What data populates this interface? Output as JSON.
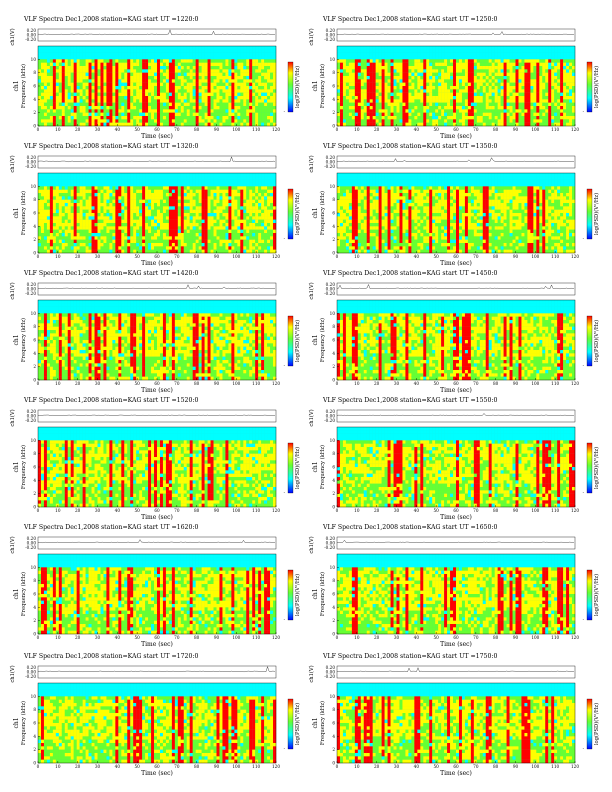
{
  "figure": {
    "title_prefix": "VLF Spectra",
    "date": "Dec1,2008",
    "station": "station=KAG",
    "start_prefix": "start UT =",
    "xlabel": "Time (sec)",
    "ylabel_freq": "Frequency (kHz)",
    "ylabel_channel": "ch1",
    "ylabel_top": "ch1(V)",
    "colorbar_label": "log(PSD)(V²/Hz)",
    "colors": {
      "background": "#ffffff",
      "cmap_low": "#0000ff",
      "cmap_mid_low": "#00ffff",
      "cmap_mid": "#66ff33",
      "cmap_mid_high": "#ffff00",
      "cmap_high": "#ff0000",
      "band_top": "#1a6cff"
    }
  },
  "chart_data": [
    {
      "type": "heatmap",
      "id": "p1",
      "title": "VLF Spectra Dec1,2008 station=KAG start UT =1220:0",
      "start_ut": "1220:0",
      "x_ticks": [
        0,
        10,
        20,
        30,
        40,
        50,
        60,
        70,
        80,
        90,
        100,
        110,
        120
      ],
      "x_range": [
        0,
        120
      ],
      "y_ticks": [
        0,
        2,
        4,
        6,
        8,
        10
      ],
      "y_range": [
        0,
        12
      ],
      "top_ticks": [
        "0.20",
        "0.00",
        "-0.20"
      ],
      "xlabel": "Time (sec)",
      "ylabel": "Frequency (kHz)",
      "cbar_ticks": [
        "",
        "",
        "-"
      ]
    },
    {
      "type": "heatmap",
      "id": "p2",
      "title": "VLF Spectra Dec1,2008 station=KAG start UT =1250:0",
      "start_ut": "1250:0",
      "x_ticks": [
        0,
        10,
        20,
        30,
        40,
        50,
        60,
        70,
        80,
        90,
        100,
        110,
        120
      ],
      "x_range": [
        0,
        120
      ],
      "y_ticks": [
        0,
        2,
        4,
        6,
        8,
        10
      ],
      "y_range": [
        0,
        12
      ],
      "top_ticks": [
        "0.20",
        "0.00",
        "-0.20"
      ],
      "xlabel": "Time (sec)",
      "ylabel": "Frequency (kHz)",
      "cbar_ticks": [
        "",
        "",
        "-"
      ]
    },
    {
      "type": "heatmap",
      "id": "p3",
      "title": "VLF Spectra Dec1,2008 station=KAG start UT =1320:0",
      "start_ut": "1320:0",
      "x_ticks": [
        0,
        10,
        20,
        30,
        40,
        50,
        60,
        70,
        80,
        90,
        100,
        110,
        120
      ],
      "x_range": [
        0,
        120
      ],
      "y_ticks": [
        0,
        2,
        4,
        6,
        8,
        10
      ],
      "y_range": [
        0,
        12
      ],
      "top_ticks": [
        "0.20",
        "0.00",
        "-0.20"
      ],
      "xlabel": "Time (sec)",
      "ylabel": "Frequency (kHz)",
      "cbar_ticks": [
        "",
        "",
        "-"
      ]
    },
    {
      "type": "heatmap",
      "id": "p4",
      "title": "VLF Spectra Dec1,2008 station=KAG start UT =1350:0",
      "start_ut": "1350:0",
      "x_ticks": [
        0,
        10,
        20,
        30,
        40,
        50,
        60,
        70,
        80,
        90,
        100,
        110,
        120
      ],
      "x_range": [
        0,
        120
      ],
      "y_ticks": [
        0,
        2,
        4,
        6,
        8,
        10
      ],
      "y_range": [
        0,
        12
      ],
      "top_ticks": [
        "0.20",
        "0.00",
        "-0.20"
      ],
      "xlabel": "Time (sec)",
      "ylabel": "Frequency (kHz)",
      "cbar_ticks": [
        "",
        "",
        "-"
      ]
    },
    {
      "type": "heatmap",
      "id": "p5",
      "title": "VLF Spectra Dec1,2008 station=KAG start UT =1420:0",
      "start_ut": "1420:0",
      "x_ticks": [
        0,
        10,
        20,
        30,
        40,
        50,
        60,
        70,
        80,
        90,
        100,
        110,
        120
      ],
      "x_range": [
        0,
        120
      ],
      "y_ticks": [
        0,
        2,
        4,
        6,
        8,
        10
      ],
      "y_range": [
        0,
        12
      ],
      "top_ticks": [
        "0.20",
        "0.00",
        "-0.20"
      ],
      "xlabel": "Time (sec)",
      "ylabel": "Frequency (kHz)",
      "cbar_ticks": [
        "",
        "",
        "-"
      ]
    },
    {
      "type": "heatmap",
      "id": "p6",
      "title": "VLF Spectra Dec1,2008 station=KAG start UT =1450:0",
      "start_ut": "1450:0",
      "x_ticks": [
        0,
        10,
        20,
        30,
        40,
        50,
        60,
        70,
        80,
        90,
        100,
        110,
        120
      ],
      "x_range": [
        0,
        120
      ],
      "y_ticks": [
        0,
        2,
        4,
        6,
        8,
        10
      ],
      "y_range": [
        0,
        12
      ],
      "top_ticks": [
        "0.20",
        "0.00",
        "-0.20"
      ],
      "xlabel": "Time (sec)",
      "ylabel": "Frequency (kHz)",
      "cbar_ticks": [
        "",
        "",
        "-"
      ]
    },
    {
      "type": "heatmap",
      "id": "p7",
      "title": "VLF Spectra Dec1,2008 station=KAG start UT =1520:0",
      "start_ut": "1520:0",
      "x_ticks": [
        0,
        10,
        20,
        30,
        40,
        50,
        60,
        70,
        80,
        90,
        100,
        110,
        120
      ],
      "x_range": [
        0,
        120
      ],
      "y_ticks": [
        0,
        2,
        4,
        6,
        8,
        10
      ],
      "y_range": [
        0,
        12
      ],
      "top_ticks": [
        "0.20",
        "0.00",
        "-0.20"
      ],
      "xlabel": "Time (sec)",
      "ylabel": "Frequency (kHz)",
      "cbar_ticks": [
        "",
        "",
        "-"
      ]
    },
    {
      "type": "heatmap",
      "id": "p8",
      "title": "VLF Spectra Dec1,2008 station=KAG start UT =1550:0",
      "start_ut": "1550:0",
      "x_ticks": [
        0,
        10,
        20,
        30,
        40,
        50,
        60,
        70,
        80,
        90,
        100,
        110,
        120
      ],
      "x_range": [
        0,
        120
      ],
      "y_ticks": [
        0,
        2,
        4,
        6,
        8,
        10
      ],
      "y_range": [
        0,
        12
      ],
      "top_ticks": [
        "0.20",
        "0.00",
        "-0.20"
      ],
      "xlabel": "Time (sec)",
      "ylabel": "Frequency (kHz)",
      "cbar_ticks": [
        "",
        "",
        "-"
      ]
    },
    {
      "type": "heatmap",
      "id": "p9",
      "title": "VLF Spectra Dec1,2008 station=KAG start UT =1620:0",
      "start_ut": "1620:0",
      "x_ticks": [
        0,
        10,
        20,
        30,
        40,
        50,
        60,
        70,
        80,
        90,
        100,
        110,
        120
      ],
      "x_range": [
        0,
        120
      ],
      "y_ticks": [
        0,
        2,
        4,
        6,
        8,
        10
      ],
      "y_range": [
        0,
        12
      ],
      "top_ticks": [
        "0.20",
        "0.00",
        "-0.20"
      ],
      "xlabel": "Time (sec)",
      "ylabel": "Frequency (kHz)",
      "cbar_ticks": [
        "",
        "",
        "-"
      ]
    },
    {
      "type": "heatmap",
      "id": "p10",
      "title": "VLF Spectra Dec1,2008 station=KAG start UT =1650:0",
      "start_ut": "1650:0",
      "x_ticks": [
        0,
        10,
        20,
        30,
        40,
        50,
        60,
        70,
        80,
        90,
        100,
        110,
        120
      ],
      "x_range": [
        0,
        120
      ],
      "y_ticks": [
        0,
        2,
        4,
        6,
        8,
        10
      ],
      "y_range": [
        0,
        12
      ],
      "top_ticks": [
        "0.20",
        "0.00",
        "-0.20"
      ],
      "xlabel": "Time (sec)",
      "ylabel": "Frequency (kHz)",
      "cbar_ticks": [
        "",
        "",
        "-"
      ]
    },
    {
      "type": "heatmap",
      "id": "p11",
      "title": "VLF Spectra Dec1,2008 station=KAG start UT =1720:0",
      "start_ut": "1720:0",
      "x_ticks": [
        0,
        10,
        20,
        30,
        40,
        50,
        60,
        70,
        80,
        90,
        100,
        110,
        120
      ],
      "x_range": [
        0,
        120
      ],
      "y_ticks": [
        0,
        2,
        4,
        6,
        8,
        10
      ],
      "y_range": [
        0,
        12
      ],
      "top_ticks": [
        "0.20",
        "0.00",
        "-0.20"
      ],
      "xlabel": "Time (sec)",
      "ylabel": "Frequency (kHz)",
      "cbar_ticks": [
        "",
        "",
        "-"
      ]
    },
    {
      "type": "heatmap",
      "id": "p12",
      "title": "VLF Spectra Dec1,2008 station=KAG start UT =1750:0",
      "start_ut": "1750:0",
      "x_ticks": [
        0,
        10,
        20,
        30,
        40,
        50,
        60,
        70,
        80,
        90,
        100,
        110,
        120
      ],
      "x_range": [
        0,
        120
      ],
      "y_ticks": [
        0,
        2,
        4,
        6,
        8,
        10
      ],
      "y_range": [
        0,
        12
      ],
      "top_ticks": [
        "0.20",
        "0.00",
        "-0.20"
      ],
      "xlabel": "Time (sec)",
      "ylabel": "Frequency (kHz)",
      "cbar_ticks": [
        "",
        "",
        "-"
      ]
    }
  ]
}
